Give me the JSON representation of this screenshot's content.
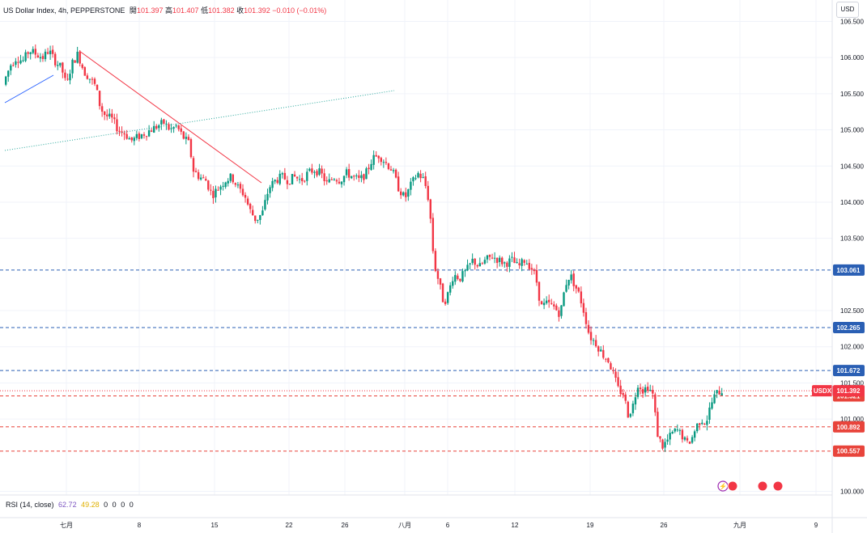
{
  "legend": {
    "symbol": "US Dollar Index, 4h, PEPPERSTONE",
    "open_label": "開",
    "open": "101.397",
    "high_label": "高",
    "high": "101.407",
    "low_label": "低",
    "low": "101.382",
    "close_label": "收",
    "close": "101.392",
    "change": "−0.010 (−0.01%)"
  },
  "currency_button": "USD",
  "rsi_legend": {
    "name": "RSI (14, close)",
    "value1": "62.72",
    "value2": "49.28",
    "zeros": [
      "0",
      "0",
      "0",
      "0"
    ]
  },
  "colors": {
    "up": "#089981",
    "down": "#f23645",
    "blue_line": "#2962ff",
    "dashed_blue": "#2a5fb4",
    "dashed_red": "#e8443b",
    "green_dotted": "#26a69a"
  },
  "chart_data": {
    "type": "candlestick",
    "title": "US Dollar Index, 4h, PEPPERSTONE",
    "y_axis_ticks": [
      "106.500",
      "106.000",
      "105.500",
      "105.000",
      "104.500",
      "104.000",
      "103.500",
      "102.500",
      "102.000",
      "101.500",
      "101.000",
      "100.000"
    ],
    "ylim": [
      99.95,
      106.55
    ],
    "x_axis_ticks": [
      "七月",
      "8",
      "15",
      "22",
      "26",
      "八月",
      "6",
      "12",
      "19",
      "26",
      "九月",
      "9"
    ],
    "price_levels": [
      {
        "value": "103.061",
        "style": "dashed",
        "color": "#2a5fb4"
      },
      {
        "value": "102.265",
        "style": "dashed",
        "color": "#2a5fb4"
      },
      {
        "value": "101.672",
        "style": "dashed",
        "color": "#2a5fb4"
      },
      {
        "value": "101.321",
        "style": "dashed",
        "color": "#e8443b"
      },
      {
        "value": "100.892",
        "style": "dashed",
        "color": "#e8443b"
      },
      {
        "value": "100.557",
        "style": "dashed",
        "color": "#e8443b"
      }
    ],
    "current_price": {
      "symbol": "USDX",
      "value": "101.392"
    },
    "path": [
      [
        0,
        105.4
      ],
      [
        8,
        105.7
      ],
      [
        15,
        105.9
      ],
      [
        22,
        106.0
      ],
      [
        30,
        105.95
      ],
      [
        38,
        106.1
      ],
      [
        46,
        106.05
      ],
      [
        55,
        106.0
      ],
      [
        62,
        106.1
      ],
      [
        70,
        105.95
      ],
      [
        78,
        105.85
      ],
      [
        84,
        105.6
      ],
      [
        90,
        105.9
      ],
      [
        98,
        106.05
      ],
      [
        106,
        105.8
      ],
      [
        114,
        105.7
      ],
      [
        120,
        105.6
      ],
      [
        126,
        105.3
      ],
      [
        132,
        105.2
      ],
      [
        140,
        105.15
      ],
      [
        148,
        105.0
      ],
      [
        156,
        104.95
      ],
      [
        164,
        104.85
      ],
      [
        172,
        104.9
      ],
      [
        180,
        104.95
      ],
      [
        188,
        105.0
      ],
      [
        196,
        105.05
      ],
      [
        204,
        105.1
      ],
      [
        212,
        105.0
      ],
      [
        220,
        105.05
      ],
      [
        228,
        104.9
      ],
      [
        236,
        104.8
      ],
      [
        240,
        104.45
      ],
      [
        248,
        104.35
      ],
      [
        256,
        104.3
      ],
      [
        264,
        104.1
      ],
      [
        272,
        104.2
      ],
      [
        280,
        104.3
      ],
      [
        288,
        104.35
      ],
      [
        296,
        104.2
      ],
      [
        304,
        104.1
      ],
      [
        310,
        103.9
      ],
      [
        318,
        103.75
      ],
      [
        326,
        103.85
      ],
      [
        334,
        104.2
      ],
      [
        342,
        104.3
      ],
      [
        350,
        104.35
      ],
      [
        358,
        104.3
      ],
      [
        366,
        104.35
      ],
      [
        374,
        104.3
      ],
      [
        382,
        104.4
      ],
      [
        390,
        104.45
      ],
      [
        398,
        104.4
      ],
      [
        406,
        104.25
      ],
      [
        414,
        104.35
      ],
      [
        422,
        104.3
      ],
      [
        430,
        104.4
      ],
      [
        438,
        104.35
      ],
      [
        446,
        104.3
      ],
      [
        454,
        104.4
      ],
      [
        462,
        104.6
      ],
      [
        470,
        104.65
      ],
      [
        478,
        104.55
      ],
      [
        486,
        104.45
      ],
      [
        494,
        104.2
      ],
      [
        502,
        104.05
      ],
      [
        510,
        104.25
      ],
      [
        518,
        104.4
      ],
      [
        526,
        104.3
      ],
      [
        532,
        104.0
      ],
      [
        538,
        103.15
      ],
      [
        544,
        102.9
      ],
      [
        550,
        102.6
      ],
      [
        556,
        102.75
      ],
      [
        562,
        103.0
      ],
      [
        570,
        102.95
      ],
      [
        578,
        103.05
      ],
      [
        586,
        103.2
      ],
      [
        594,
        103.1
      ],
      [
        602,
        103.2
      ],
      [
        610,
        103.25
      ],
      [
        618,
        103.2
      ],
      [
        626,
        103.15
      ],
      [
        634,
        103.2
      ],
      [
        642,
        103.1
      ],
      [
        650,
        103.2
      ],
      [
        658,
        103.1
      ],
      [
        664,
        102.95
      ],
      [
        670,
        102.55
      ],
      [
        678,
        102.6
      ],
      [
        686,
        102.55
      ],
      [
        694,
        102.45
      ],
      [
        700,
        102.85
      ],
      [
        706,
        103.0
      ],
      [
        712,
        102.85
      ],
      [
        718,
        102.7
      ],
      [
        724,
        102.45
      ],
      [
        730,
        102.15
      ],
      [
        738,
        102.05
      ],
      [
        746,
        101.9
      ],
      [
        754,
        101.8
      ],
      [
        760,
        101.6
      ],
      [
        766,
        101.4
      ],
      [
        772,
        101.35
      ],
      [
        778,
        101.05
      ],
      [
        784,
        101.2
      ],
      [
        790,
        101.5
      ],
      [
        796,
        101.4
      ],
      [
        802,
        101.45
      ],
      [
        808,
        101.35
      ],
      [
        814,
        100.8
      ],
      [
        820,
        100.62
      ],
      [
        826,
        100.7
      ],
      [
        832,
        100.8
      ],
      [
        838,
        100.85
      ],
      [
        844,
        100.78
      ],
      [
        850,
        100.65
      ],
      [
        856,
        100.72
      ],
      [
        862,
        100.9
      ],
      [
        868,
        101.0
      ],
      [
        874,
        100.95
      ],
      [
        880,
        101.2
      ],
      [
        886,
        101.35
      ],
      [
        892,
        101.39
      ]
    ]
  }
}
